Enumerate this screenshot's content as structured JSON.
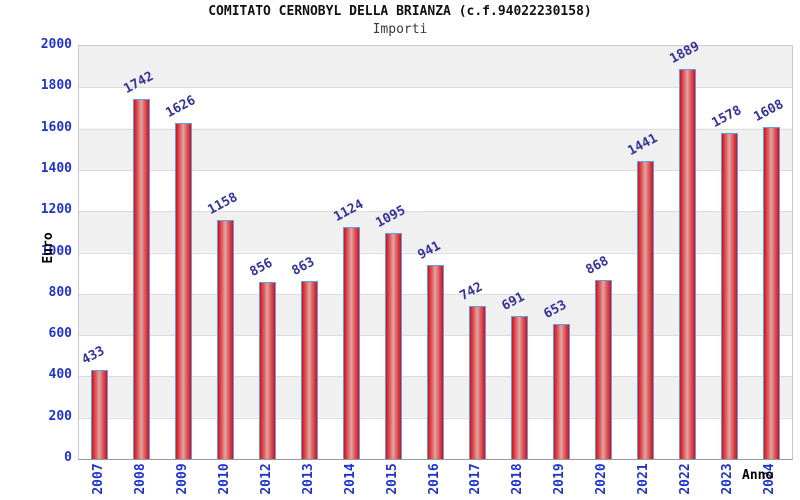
{
  "title": "COMITATO CERNOBYL DELLA BRIANZA (c.f.94022230158)",
  "subtitle": "Importi",
  "chart_data": {
    "type": "bar",
    "title": "COMITATO CERNOBYL DELLA BRIANZA (c.f.94022230158)",
    "subtitle": "Importi",
    "categories": [
      "2007",
      "2008",
      "2009",
      "2010",
      "2012",
      "2013",
      "2014",
      "2015",
      "2016",
      "2017",
      "2018",
      "2019",
      "2020",
      "2021",
      "2022",
      "2023",
      "2024"
    ],
    "values": [
      433,
      1742,
      1626,
      1158,
      856,
      863,
      1124,
      1095,
      941,
      742,
      691,
      653,
      868,
      1441,
      1889,
      1578,
      1608
    ],
    "xlabel": "Anno",
    "ylabel": "Euro",
    "ylim": [
      0,
      2000
    ],
    "ytick_step": 200,
    "yticks": [
      0,
      200,
      400,
      600,
      800,
      1000,
      1200,
      1400,
      1600,
      1800,
      2000
    ],
    "grid": "horizontal bands, alternating gray/white every 200, gray topmost",
    "legend": "none",
    "colors": {
      "bar_edge": "#ce1126",
      "bar_mid": "#e05858",
      "bar_center": "#dca6a6",
      "bar_border": "#5f9ee0",
      "value_label": "#333399",
      "tick_label": "#2233cc",
      "band_gray": "#f0f0f0",
      "band_white": "#ffffff",
      "gridline": "#dcdcdc",
      "axis_line": "#999999",
      "title_color": "#111111",
      "subtitle_color": "#3c3c3c"
    }
  }
}
